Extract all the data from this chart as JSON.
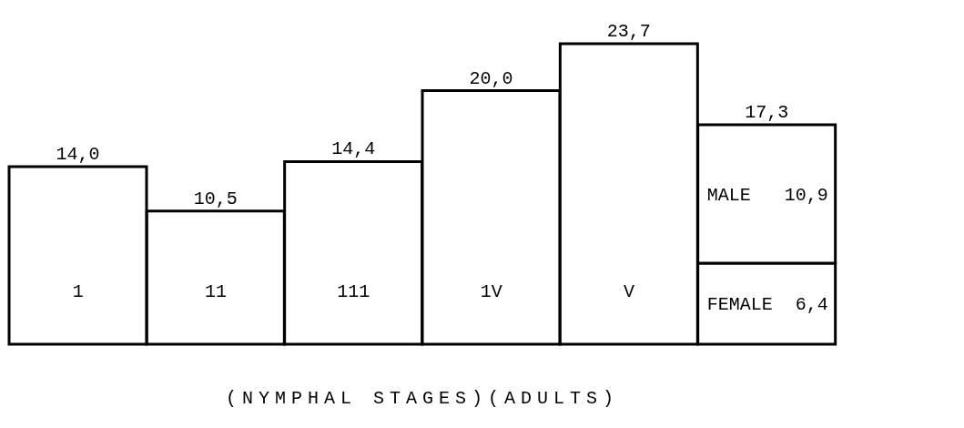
{
  "chart_data": {
    "type": "bar",
    "stacked": true,
    "categories": [
      "1",
      "11",
      "111",
      "1V",
      "V",
      null
    ],
    "series": [
      {
        "color": "#ffffff",
        "values": [
          14.0,
          10.5,
          14.4,
          20.0,
          23.7,
          null
        ],
        "value_labels": [
          "14,0",
          "10,5",
          "14,4",
          "20,0",
          "23,7",
          null
        ]
      },
      {
        "name": "FEMALE",
        "color": "#ffffff",
        "values": [
          null,
          null,
          null,
          null,
          null,
          6.4
        ],
        "value_labels": [
          null,
          null,
          null,
          null,
          null,
          "6,4"
        ]
      },
      {
        "name": "MALE",
        "color": "#ffffff",
        "values": [
          null,
          null,
          null,
          null,
          null,
          10.9
        ],
        "value_labels": [
          null,
          null,
          null,
          null,
          null,
          "10,9"
        ]
      }
    ],
    "totals": [
      null,
      null,
      null,
      null,
      null,
      "17,3"
    ],
    "xlabel": "(NYMPHAL STAGES)(ADULTS)",
    "grid": false,
    "legend": false
  }
}
